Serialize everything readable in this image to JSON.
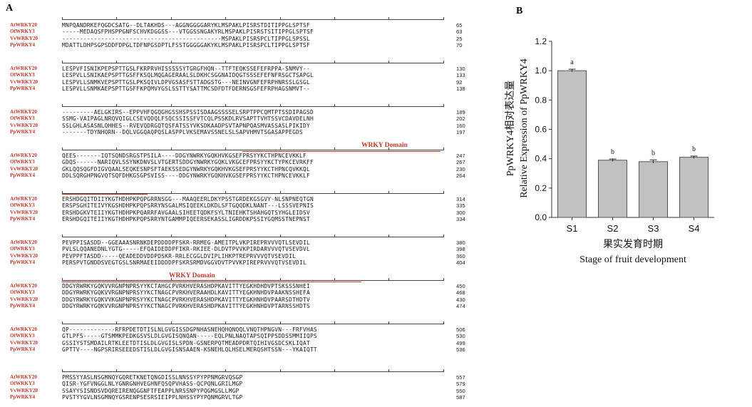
{
  "panel_a": {
    "letter": "A",
    "blocks": [
      {
        "rows": [
          {
            "species": "AtWRKY20",
            "seq": "MNPQANDRKEFQGDCSATG--DLTAKHDS---AGGNGGGGARYKLMSPAKLPISRSTDITIPPGLSPTSF",
            "pos": "65"
          },
          {
            "species": "OfWRKY3",
            "seq": "-----MEDAQSFPHSPPGNFSCHVKDGGSS---VTGGSSNGAKYRLMSPAKLPISRSTSITIPPGLSPTSF",
            "pos": "63"
          },
          {
            "species": "VvWRKY20",
            "seq": "---------------------------------------------MSPAKLPISRSPCLTIPPGLSPSSL",
            "pos": "25"
          },
          {
            "species": "PpWRKY4",
            "seq": "MDATTLDHPSGPSDDFDPGLTDFNPGSDPTLFSSTGGGGGAKYKLMSPAKLPISRSPCLTIPPGLSPTSF",
            "pos": "70"
          }
        ]
      },
      {
        "rows": [
          {
            "species": "AtWRKY20",
            "seq": "LESPVFISNIKPEPSPTTGSLFKRPRVHISSSSSYTGRGFHQN--TTFTEQKSSEFEFRPPA-SNMVY--",
            "pos": "130"
          },
          {
            "species": "OfWRKY3",
            "seq": "LESPVLLSNIKAEPSPTTGSFFKSQLMQGAGERAALSLDKHCSGGNAIDQGTSSSEFEFNFRSGCTSAPGL",
            "pos": "133"
          },
          {
            "species": "VvWRKY20",
            "seq": "LESPVLLSNMKVEPSPTTGSLPKSQIVLDPVGSASFSTTADGSTG---NEINVGNFEFRPHNRSSLGSGL",
            "pos": "92"
          },
          {
            "species": "PpWRKY4",
            "seq": "LESPVLLSNMKAEPSPTTGSFFKPQMVYGSLSSTTYSATTMCSDFDTFDERNSGSFEFRPHAGSNMVT--",
            "pos": "138"
          }
        ]
      },
      {
        "rows": [
          {
            "species": "AtWRKY20",
            "seq": "---------AELGKIRS--EPPVHFQGQGHGSSHSPSSISDAAGSSSSELSRPTPPCQMTPTSSDIPAGSD",
            "pos": "189"
          },
          {
            "species": "OfWRKY3",
            "seq": "SSMG-VAIPAGLNRQVQIGLCSEVQDQLFSQCSSISSFVTCQLPSSKDLRVSAPTTVHTSSVCDAVDELNH",
            "pos": "202"
          },
          {
            "species": "VvWRKY20",
            "seq": "SSLGHLASASNLQHHES--RVEVQDRGQTQSFATSSYVKSDKAADPSVTAPNPQASMVASSASLPIKIDY",
            "pos": "160"
          },
          {
            "species": "PpWRKY4",
            "seq": "-------TDYNHQRN--DQLVGGQAQPQSLASPPLVKSEMAVSSNELSLSAPVHMVTSGASAPPEGDS",
            "pos": "197"
          }
        ]
      },
      {
        "rows": [
          {
            "species": "AtWRKY20",
            "seq": "QEES-------IQTSQNDSRGSTPSILA----DDGYNWRKYGQKHVKGSEFPRSYYKCTHPNCEVKKLF",
            "pos": "247"
          },
          {
            "species": "OfWRKY3",
            "seq": "GDQS------NARIQVLSSYNKDNVSLVTGERTSDDGYNWRKYGQKLVKGCEFPRSYYKCTYPKCEVRKFF",
            "pos": "267"
          },
          {
            "species": "VvWRKY20",
            "seq": "GKLQQSQGFDIGVQAALSEQKESNPSFTAEKSSEDGYNWRKYGQKHVKGSEFPRSYYKCTHPNCQVKKQL",
            "pos": "230"
          },
          {
            "species": "PpWRKY4",
            "seq": "DDLSQRGHPNGVQTSQFDHKGSGPSVISS----DDGYNWRKYGQKHVKGSEFPRSYYKCTHPNCEVKKLF",
            "pos": "264"
          }
        ]
      },
      {
        "rows": [
          {
            "species": "AtWRKY20",
            "seq": "ERSHDGQITDIIYKGTHDHPKPQPGRRNSGG---MAAQEERLDKYPSSTGRDEKGSGVY-NLSNPNEQTGN",
            "pos": "314"
          },
          {
            "species": "OfWRKY3",
            "seq": "ERSPSGHITEIVYKGSHDHPKPQPSRRYNSGALMSIQEEKLDKDLSFTGQQDKLNANT---LSSSVEPNIS",
            "pos": "335"
          },
          {
            "species": "VvWRKY20",
            "seq": "ERSHDGKVTEIIYKGTHDHPKPQARRFAVGAALSIHEETQDKFSYLTNIEHKTSHAHGQTSYHGLEIDSV",
            "pos": "300"
          },
          {
            "species": "PpWRKY4",
            "seq": "ERSHDGQITEIIYKGTHDHPKPQPSRRYNTGAMMPIQEERSEKASSLIGRDDKPSSIYGQMSSTNEPNST",
            "pos": "334"
          }
        ]
      },
      {
        "rows": [
          {
            "species": "AtWRKY20",
            "seq": "PEVPPISASDD--GGEAAASNRNKDEPDDDDPFSKR-RRMEG-AMEITPLVKPIREPRVVVQTLSEVDIL",
            "pos": "380"
          },
          {
            "species": "OfWRKY3",
            "seq": "PVLSLQQANEDNLYGTG-----EFQAIDEDDPFIKR-RKIEE-DLDVTPVVKPIRDARVVVQTVSEVDVL",
            "pos": "398"
          },
          {
            "species": "VvWRKY20",
            "seq": "PEVPPFTASDD-----QEADEDDVDDPDSKR-RRLECGGLDVIPLIHKPTREPRVVVQTVSEVDIL",
            "pos": "360"
          },
          {
            "species": "PpWRKY4",
            "seq": "PERSPVTGNDDSVEGTGSLSNRMAEEIDDDDPFSKRSRMDVGGVDVTPVVKPIREPRVVVQTVSEVDIL",
            "pos": "404"
          }
        ]
      },
      {
        "rows": [
          {
            "species": "AtWRKY20",
            "seq": "DDGYRWRKYGQKVVRGNPNPRSYYKCTAHGCPVRKHVERASHDPKAVITTYEGKHDHDVPTSKSSSNHEI",
            "pos": "450"
          },
          {
            "species": "OfWRKY3",
            "seq": "DDGYRWRKYGQKVVRGNPNPRSYYKCTNAGCPVRKHVERAAHDLKAVITTYEGKHNHDVPAAKNSSHEFA",
            "pos": "468"
          },
          {
            "species": "VvWRKY20",
            "seq": "DDGYRWRKYGQKVVKGNPNPRSYYKCTNAGCPVRKHVERASHDPKAVITTYEGKHNHDVPAARSDTHDTV",
            "pos": "430"
          },
          {
            "species": "PpWRKY4",
            "seq": "DDGYRWRKYGQKVVRGNPNPRSYYKCTNAGCPVRKHVERASHDPKAVITTYEGKHNHDVPTARNSSHDTS",
            "pos": "474"
          }
        ]
      },
      {
        "rows": [
          {
            "species": "AtWRKY20",
            "seq": "QP-------------RFRPDETDTISLNLGVGISSDGPNHASNEHQHQNQQLVNQTHPNGVN---FRFVHAS",
            "pos": "506"
          },
          {
            "species": "OfWRKY3",
            "seq": "GTLPFS-----GTSMMKPEDKGSVSLDLGVGISQNQAN-----EQLPNLNAQTAPSQIPPSDDSSMMIIQPS",
            "pos": "530"
          },
          {
            "species": "VvWRKY20",
            "seq": "GSSIYSTSMDAILRTKLEETDTISLDLGVGISLSPDN-GSNERPQTMEADPDRTQIHIVGSDCSKLIQAT",
            "pos": "499"
          },
          {
            "species": "PpWRKY4",
            "seq": "GPTTV----NGPSRIRSEEEDSTISLDLGVGISNSAAEN-KSNEHLQLHSELMERQSHTSSN---YKAIQTT",
            "pos": "536"
          }
        ]
      },
      {
        "rows": [
          {
            "species": "AtWRKY20",
            "seq": "PMSSYYASLNSGMNQYGQRETKNETQNGDISSLNNSSYPYPPNMGRVQSGP",
            "pos": "557"
          },
          {
            "species": "OfWRKY3",
            "seq": "QISR-YGFVNGGLNLYGNRGNHVEGHNFQSQPVHASS-QCPQNLGRILMGP",
            "pos": "579"
          },
          {
            "species": "VvWRKY20",
            "seq": "SSAYYSISNDSVDQREIRENQGGNFTFEAPPLNRSSNPYPQGMGSLLMGP",
            "pos": "550"
          },
          {
            "species": "PpWRKY4",
            "seq": "PVSTYYGVLNSGMNQYGSRENPSESRSIEIPPLNHSSYPYPQNMGRVLTGP",
            "pos": "587"
          }
        ]
      }
    ],
    "domains": [
      {
        "label": "WRKY Domain"
      },
      {
        "label": "WRKY Domain"
      }
    ]
  },
  "panel_b": {
    "letter": "B",
    "chart_data": {
      "type": "bar",
      "categories": [
        "S1",
        "S2",
        "S3",
        "S4"
      ],
      "values": [
        1.0,
        0.39,
        0.38,
        0.41
      ],
      "errors": [
        0.01,
        0.008,
        0.012,
        0.008
      ],
      "significance": [
        "a",
        "b",
        "b",
        "b"
      ],
      "ylabel_cn": "PpWRKY4相对表达量",
      "ylabel_en": "Relative Expression of PpWRKY4",
      "xlabel_cn": "果实发育时期",
      "xlabel_en": "Stage of fruit development",
      "ylim": [
        0,
        1.2
      ],
      "yticks": [
        "0.0",
        "0.2",
        "0.4",
        "0.6",
        "0.8",
        "1.0",
        "1.2"
      ],
      "bar_color": "#c0c0c0",
      "grid": false
    }
  }
}
